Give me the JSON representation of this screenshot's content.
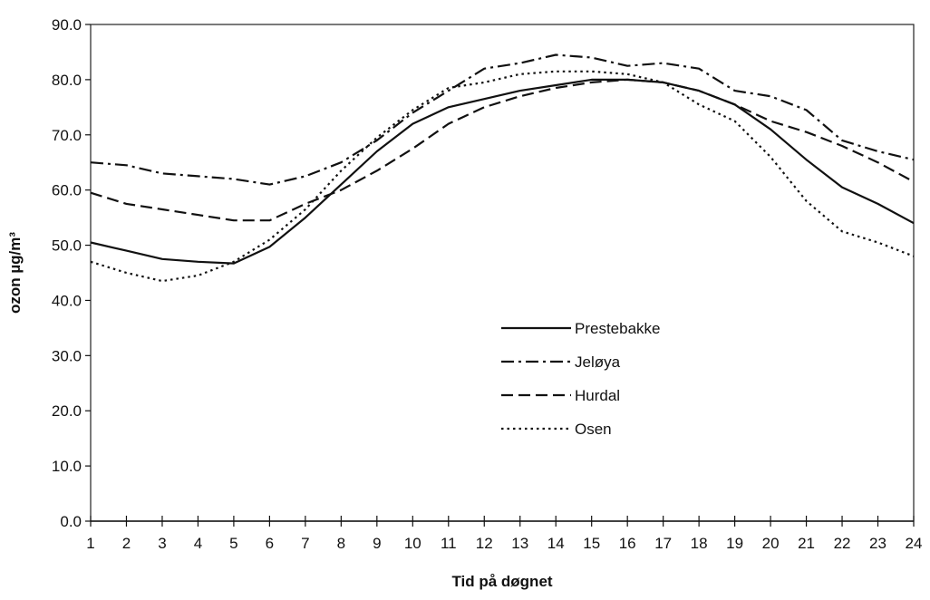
{
  "chart_data": {
    "type": "line",
    "xlabel": "Tid på døgnet",
    "ylabel": "ozon µg/m³",
    "x": [
      1,
      2,
      3,
      4,
      5,
      6,
      7,
      8,
      9,
      10,
      11,
      12,
      13,
      14,
      15,
      16,
      17,
      18,
      19,
      20,
      21,
      22,
      23,
      24
    ],
    "xlim": [
      1,
      24
    ],
    "ylim": [
      0,
      90
    ],
    "yticks": [
      "0.0",
      "10.0",
      "20.0",
      "30.0",
      "40.0",
      "50.0",
      "60.0",
      "70.0",
      "80.0",
      "90.0"
    ],
    "grid": false,
    "legend_position": "center-right",
    "series": [
      {
        "name": "Prestebakke",
        "style": "solid",
        "color": "#111111",
        "values": [
          50.5,
          49.0,
          47.5,
          47.0,
          46.7,
          49.7,
          55.0,
          61.0,
          67.0,
          72.0,
          75.0,
          76.5,
          78.0,
          79.0,
          80.0,
          80.0,
          79.5,
          78.0,
          75.5,
          71.0,
          65.5,
          60.5,
          57.5,
          54.0
        ]
      },
      {
        "name": "Jeløya",
        "style": "dash-dot",
        "color": "#111111",
        "values": [
          65.0,
          64.5,
          63.0,
          62.5,
          62.0,
          61.0,
          62.5,
          65.0,
          69.0,
          74.0,
          78.0,
          82.0,
          83.0,
          84.5,
          84.0,
          82.5,
          83.0,
          82.0,
          78.0,
          77.0,
          74.5,
          69.0,
          67.0,
          65.5
        ]
      },
      {
        "name": "Hurdal",
        "style": "dashed",
        "color": "#111111",
        "values": [
          59.5,
          57.5,
          56.5,
          55.5,
          54.5,
          54.5,
          57.5,
          60.0,
          63.5,
          67.5,
          72.0,
          75.0,
          77.0,
          78.5,
          79.5,
          80.0,
          79.5,
          78.0,
          75.5,
          72.5,
          70.5,
          68.0,
          65.0,
          61.5
        ]
      },
      {
        "name": "Osen",
        "style": "dotted",
        "color": "#111111",
        "values": [
          47.0,
          45.0,
          43.5,
          44.5,
          47.0,
          51.0,
          56.5,
          63.5,
          69.5,
          74.5,
          78.5,
          79.5,
          81.0,
          81.5,
          81.5,
          81.0,
          79.5,
          75.5,
          72.5,
          66.0,
          58.0,
          52.5,
          50.5,
          48.0
        ]
      }
    ]
  }
}
